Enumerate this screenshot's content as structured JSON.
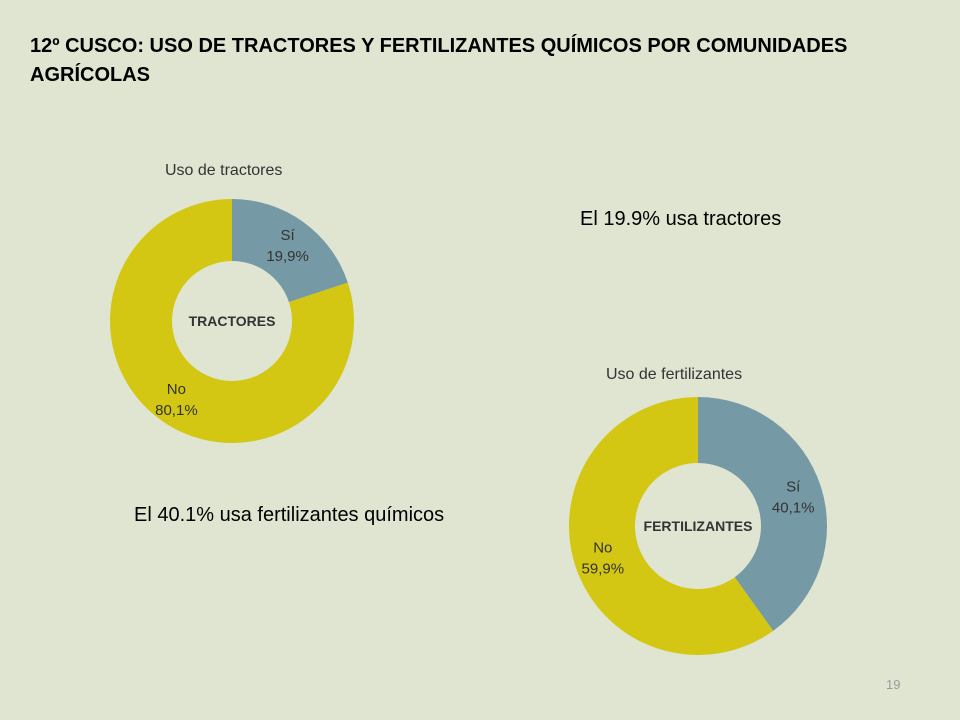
{
  "slide": {
    "title": "12º CUSCO:  USO DE TRACTORES Y FERTILIZANTES QUÍMICOS POR COMUNIDADES AGRÍCOLAS",
    "caption_tractors": "El 19.9% usa tractores",
    "caption_fertilizers": "El 40.1% usa fertilizantes químicos",
    "page_number": "19"
  },
  "colors": {
    "si": "#7699a6",
    "no": "#d3c713",
    "background": "#dfe5d0"
  },
  "chart_data": [
    {
      "type": "pie",
      "title": "Uso de tractores",
      "center_label": "TRACTORES",
      "categories": [
        "Sí",
        "No"
      ],
      "values": [
        19.9,
        80.1
      ],
      "value_labels": [
        "19,9%",
        "80,1%"
      ]
    },
    {
      "type": "pie",
      "title": "Uso de fertilizantes",
      "center_label": "FERTILIZANTES",
      "categories": [
        "Sí",
        "No"
      ],
      "values": [
        40.1,
        59.9
      ],
      "value_labels": [
        "40,1%",
        "59,9%"
      ]
    }
  ]
}
